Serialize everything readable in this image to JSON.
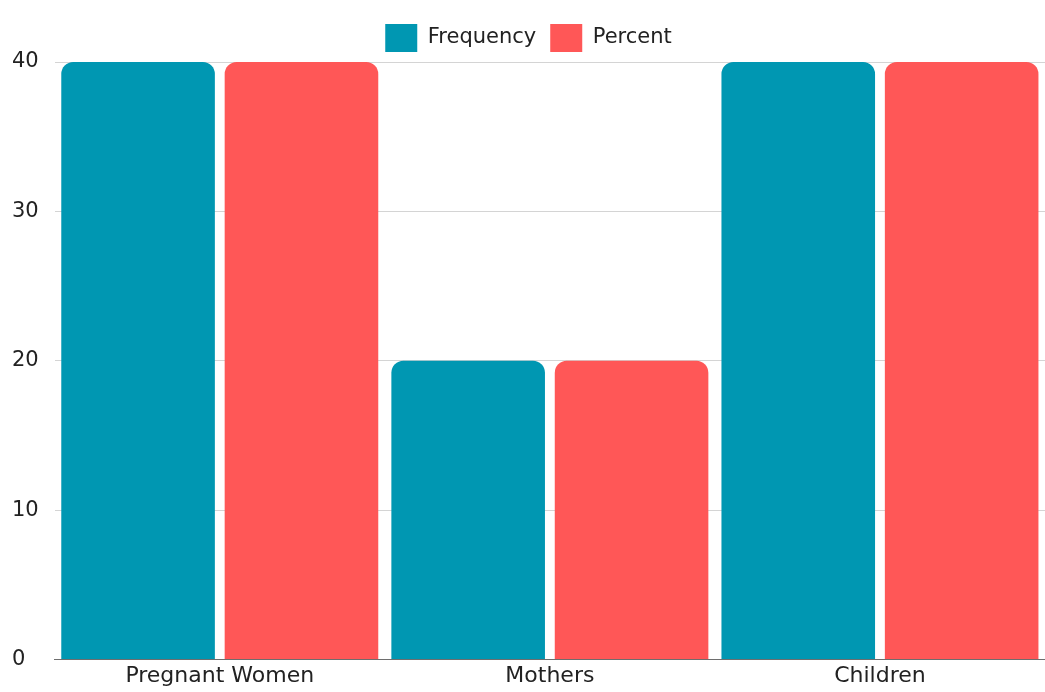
{
  "chart_data": {
    "type": "bar",
    "categories": [
      "Pregnant Women",
      "Mothers",
      "Children"
    ],
    "series": [
      {
        "name": "Frequency",
        "color": "#0097b2",
        "values": [
          40,
          20,
          40
        ]
      },
      {
        "name": "Percent",
        "color": "#ff5757",
        "values": [
          40,
          20,
          40
        ]
      }
    ],
    "ylim": [
      0,
      40
    ],
    "yticks": [
      0,
      10,
      20,
      30,
      40
    ],
    "grid": "y",
    "legend": "top"
  }
}
